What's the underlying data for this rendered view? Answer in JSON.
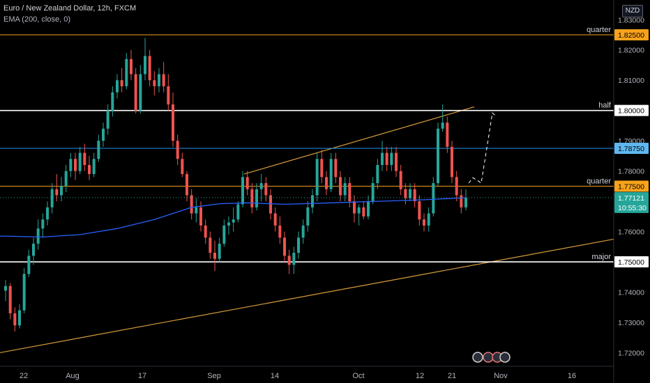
{
  "header": {
    "title": "Euro / New Zealand Dollar, 12h, FXCM",
    "indicator": "EMA (200, close, 0)",
    "currency": "NZD"
  },
  "colors": {
    "background": "#000000",
    "up": "#26a69a",
    "down": "#ef5350",
    "ema": "#2962ff",
    "orange_level": "#f7a21b",
    "blue_level": "#2196f3",
    "white_level": "#ffffff",
    "trend": "#d99e3b"
  },
  "chart_data": {
    "type": "candlestick",
    "symbol": "EURNZD",
    "timeframe": "12h",
    "source": "FXCM",
    "ylim": [
      1.7155,
      1.8365
    ],
    "y_ticks": [
      "1.72000",
      "1.73000",
      "1.74000",
      "1.75000",
      "1.76000",
      "1.77000",
      "1.78000",
      "1.79000",
      "1.80000",
      "1.81000",
      "1.82000",
      "1.83000"
    ],
    "x_ticks": [
      "22",
      "Aug",
      "17",
      "Sep",
      "14",
      "Oct",
      "12",
      "21",
      "Nov",
      "16"
    ],
    "levels": [
      {
        "label": "quarter",
        "value": 1.825,
        "price_label": "1.82500",
        "color": "#f7a21b"
      },
      {
        "label": "half",
        "value": 1.8,
        "price_label": "1.80000",
        "color": "#ffffff"
      },
      {
        "label": "",
        "value": 1.7875,
        "price_label": "1.78750",
        "color": "#2196f3"
      },
      {
        "label": "quarter",
        "value": 1.775,
        "price_label": "1.77500",
        "color": "#f7a21b"
      },
      {
        "label": "major",
        "value": 1.75,
        "price_label": "1.75000",
        "color": "#ffffff"
      }
    ],
    "current_price": {
      "value": 1.77121,
      "label": "1.77121",
      "countdown": "10:55:30"
    },
    "candles": [
      [
        1.7405,
        1.744,
        1.737,
        1.742
      ],
      [
        1.742,
        1.743,
        1.731,
        1.733
      ],
      [
        1.733,
        1.735,
        1.727,
        1.729
      ],
      [
        1.729,
        1.736,
        1.728,
        1.734
      ],
      [
        1.734,
        1.748,
        1.733,
        1.746
      ],
      [
        1.746,
        1.754,
        1.745,
        1.752
      ],
      [
        1.752,
        1.758,
        1.749,
        1.756
      ],
      [
        1.756,
        1.764,
        1.754,
        1.761
      ],
      [
        1.761,
        1.766,
        1.758,
        1.764
      ],
      [
        1.764,
        1.77,
        1.762,
        1.768
      ],
      [
        1.768,
        1.776,
        1.766,
        1.774
      ],
      [
        1.774,
        1.779,
        1.77,
        1.772
      ],
      [
        1.772,
        1.778,
        1.77,
        1.775
      ],
      [
        1.775,
        1.782,
        1.773,
        1.78
      ],
      [
        1.78,
        1.786,
        1.778,
        1.784
      ],
      [
        1.784,
        1.786,
        1.777,
        1.78
      ],
      [
        1.78,
        1.788,
        1.779,
        1.786
      ],
      [
        1.786,
        1.789,
        1.78,
        1.782
      ],
      [
        1.782,
        1.785,
        1.777,
        1.779
      ],
      [
        1.779,
        1.786,
        1.778,
        1.784
      ],
      [
        1.784,
        1.792,
        1.783,
        1.79
      ],
      [
        1.79,
        1.796,
        1.788,
        1.794
      ],
      [
        1.794,
        1.802,
        1.792,
        1.8
      ],
      [
        1.8,
        1.808,
        1.798,
        1.806
      ],
      [
        1.806,
        1.812,
        1.804,
        1.81
      ],
      [
        1.81,
        1.814,
        1.806,
        1.808
      ],
      [
        1.808,
        1.819,
        1.807,
        1.817
      ],
      [
        1.817,
        1.82,
        1.81,
        1.812
      ],
      [
        1.812,
        1.814,
        1.799,
        1.8
      ],
      [
        1.8,
        1.815,
        1.799,
        1.812
      ],
      [
        1.812,
        1.824,
        1.81,
        1.818
      ],
      [
        1.818,
        1.82,
        1.808,
        1.81
      ],
      [
        1.81,
        1.813,
        1.805,
        1.808
      ],
      [
        1.808,
        1.814,
        1.806,
        1.812
      ],
      [
        1.812,
        1.816,
        1.806,
        1.808
      ],
      [
        1.808,
        1.812,
        1.8,
        1.802
      ],
      [
        1.802,
        1.806,
        1.788,
        1.79
      ],
      [
        1.79,
        1.792,
        1.782,
        1.784
      ],
      [
        1.784,
        1.786,
        1.778,
        1.779
      ],
      [
        1.779,
        1.78,
        1.77,
        1.772
      ],
      [
        1.772,
        1.774,
        1.764,
        1.766
      ],
      [
        1.766,
        1.771,
        1.763,
        1.768
      ],
      [
        1.768,
        1.77,
        1.76,
        1.762
      ],
      [
        1.762,
        1.764,
        1.756,
        1.758
      ],
      [
        1.758,
        1.76,
        1.751,
        1.753
      ],
      [
        1.753,
        1.757,
        1.747,
        1.751
      ],
      [
        1.751,
        1.758,
        1.75,
        1.756
      ],
      [
        1.756,
        1.764,
        1.755,
        1.762
      ],
      [
        1.762,
        1.765,
        1.759,
        1.763
      ],
      [
        1.763,
        1.768,
        1.76,
        1.764
      ],
      [
        1.764,
        1.77,
        1.763,
        1.769
      ],
      [
        1.769,
        1.78,
        1.768,
        1.778
      ],
      [
        1.778,
        1.78,
        1.772,
        1.774
      ],
      [
        1.774,
        1.776,
        1.766,
        1.768
      ],
      [
        1.768,
        1.776,
        1.767,
        1.774
      ],
      [
        1.774,
        1.779,
        1.77,
        1.776
      ],
      [
        1.776,
        1.778,
        1.77,
        1.772
      ],
      [
        1.772,
        1.774,
        1.764,
        1.766
      ],
      [
        1.766,
        1.768,
        1.76,
        1.762
      ],
      [
        1.762,
        1.765,
        1.756,
        1.758
      ],
      [
        1.758,
        1.76,
        1.75,
        1.752
      ],
      [
        1.752,
        1.754,
        1.746,
        1.749
      ],
      [
        1.749,
        1.755,
        1.746,
        1.753
      ],
      [
        1.753,
        1.76,
        1.751,
        1.758
      ],
      [
        1.758,
        1.764,
        1.756,
        1.762
      ],
      [
        1.762,
        1.77,
        1.76,
        1.768
      ],
      [
        1.768,
        1.774,
        1.766,
        1.772
      ],
      [
        1.772,
        1.786,
        1.77,
        1.784
      ],
      [
        1.784,
        1.787,
        1.776,
        1.778
      ],
      [
        1.778,
        1.78,
        1.772,
        1.774
      ],
      [
        1.774,
        1.786,
        1.773,
        1.784
      ],
      [
        1.784,
        1.786,
        1.776,
        1.778
      ],
      [
        1.778,
        1.78,
        1.77,
        1.772
      ],
      [
        1.772,
        1.778,
        1.77,
        1.776
      ],
      [
        1.776,
        1.778,
        1.768,
        1.77
      ],
      [
        1.77,
        1.772,
        1.763,
        1.766
      ],
      [
        1.766,
        1.769,
        1.762,
        1.768
      ],
      [
        1.768,
        1.77,
        1.764,
        1.765
      ],
      [
        1.765,
        1.772,
        1.764,
        1.77
      ],
      [
        1.77,
        1.778,
        1.769,
        1.776
      ],
      [
        1.776,
        1.784,
        1.774,
        1.782
      ],
      [
        1.782,
        1.79,
        1.78,
        1.786
      ],
      [
        1.786,
        1.788,
        1.78,
        1.782
      ],
      [
        1.782,
        1.788,
        1.78,
        1.786
      ],
      [
        1.786,
        1.788,
        1.778,
        1.78
      ],
      [
        1.78,
        1.782,
        1.772,
        1.774
      ],
      [
        1.774,
        1.776,
        1.769,
        1.771
      ],
      [
        1.771,
        1.776,
        1.77,
        1.774
      ],
      [
        1.774,
        1.776,
        1.768,
        1.77
      ],
      [
        1.77,
        1.772,
        1.762,
        1.764
      ],
      [
        1.764,
        1.766,
        1.76,
        1.762
      ],
      [
        1.762,
        1.768,
        1.76,
        1.766
      ],
      [
        1.766,
        1.778,
        1.765,
        1.776
      ],
      [
        1.776,
        1.796,
        1.775,
        1.794
      ],
      [
        1.794,
        1.802,
        1.793,
        1.796
      ],
      [
        1.796,
        1.798,
        1.786,
        1.788
      ],
      [
        1.788,
        1.79,
        1.776,
        1.778
      ],
      [
        1.778,
        1.78,
        1.77,
        1.772
      ],
      [
        1.772,
        1.774,
        1.766,
        1.768
      ],
      [
        1.768,
        1.774,
        1.767,
        1.7712
      ]
    ],
    "ema": [
      [
        0,
        1.7585
      ],
      [
        8,
        1.7582
      ],
      [
        16,
        1.759
      ],
      [
        24,
        1.761
      ],
      [
        32,
        1.764
      ],
      [
        40,
        1.768
      ],
      [
        46,
        1.7692
      ],
      [
        52,
        1.7695
      ],
      [
        60,
        1.769
      ],
      [
        70,
        1.7695
      ],
      [
        80,
        1.77
      ],
      [
        90,
        1.7705
      ],
      [
        99,
        1.7712
      ]
    ],
    "trendlines": [
      {
        "name": "lower",
        "points": [
          [
            "22",
            1.72
          ],
          [
            "16",
            1.7575
          ]
        ]
      },
      {
        "name": "upper",
        "points": [
          [
            "Sep 10",
            1.779
          ],
          [
            "Oct 25",
            1.8012
          ]
        ]
      }
    ],
    "projection": [
      [
        1.772,
        1.776
      ],
      [
        1.777,
        1.781
      ],
      [
        1.7785,
        1.776
      ],
      [
        1.776,
        1.799
      ],
      [
        1.8,
        1.798
      ]
    ]
  }
}
